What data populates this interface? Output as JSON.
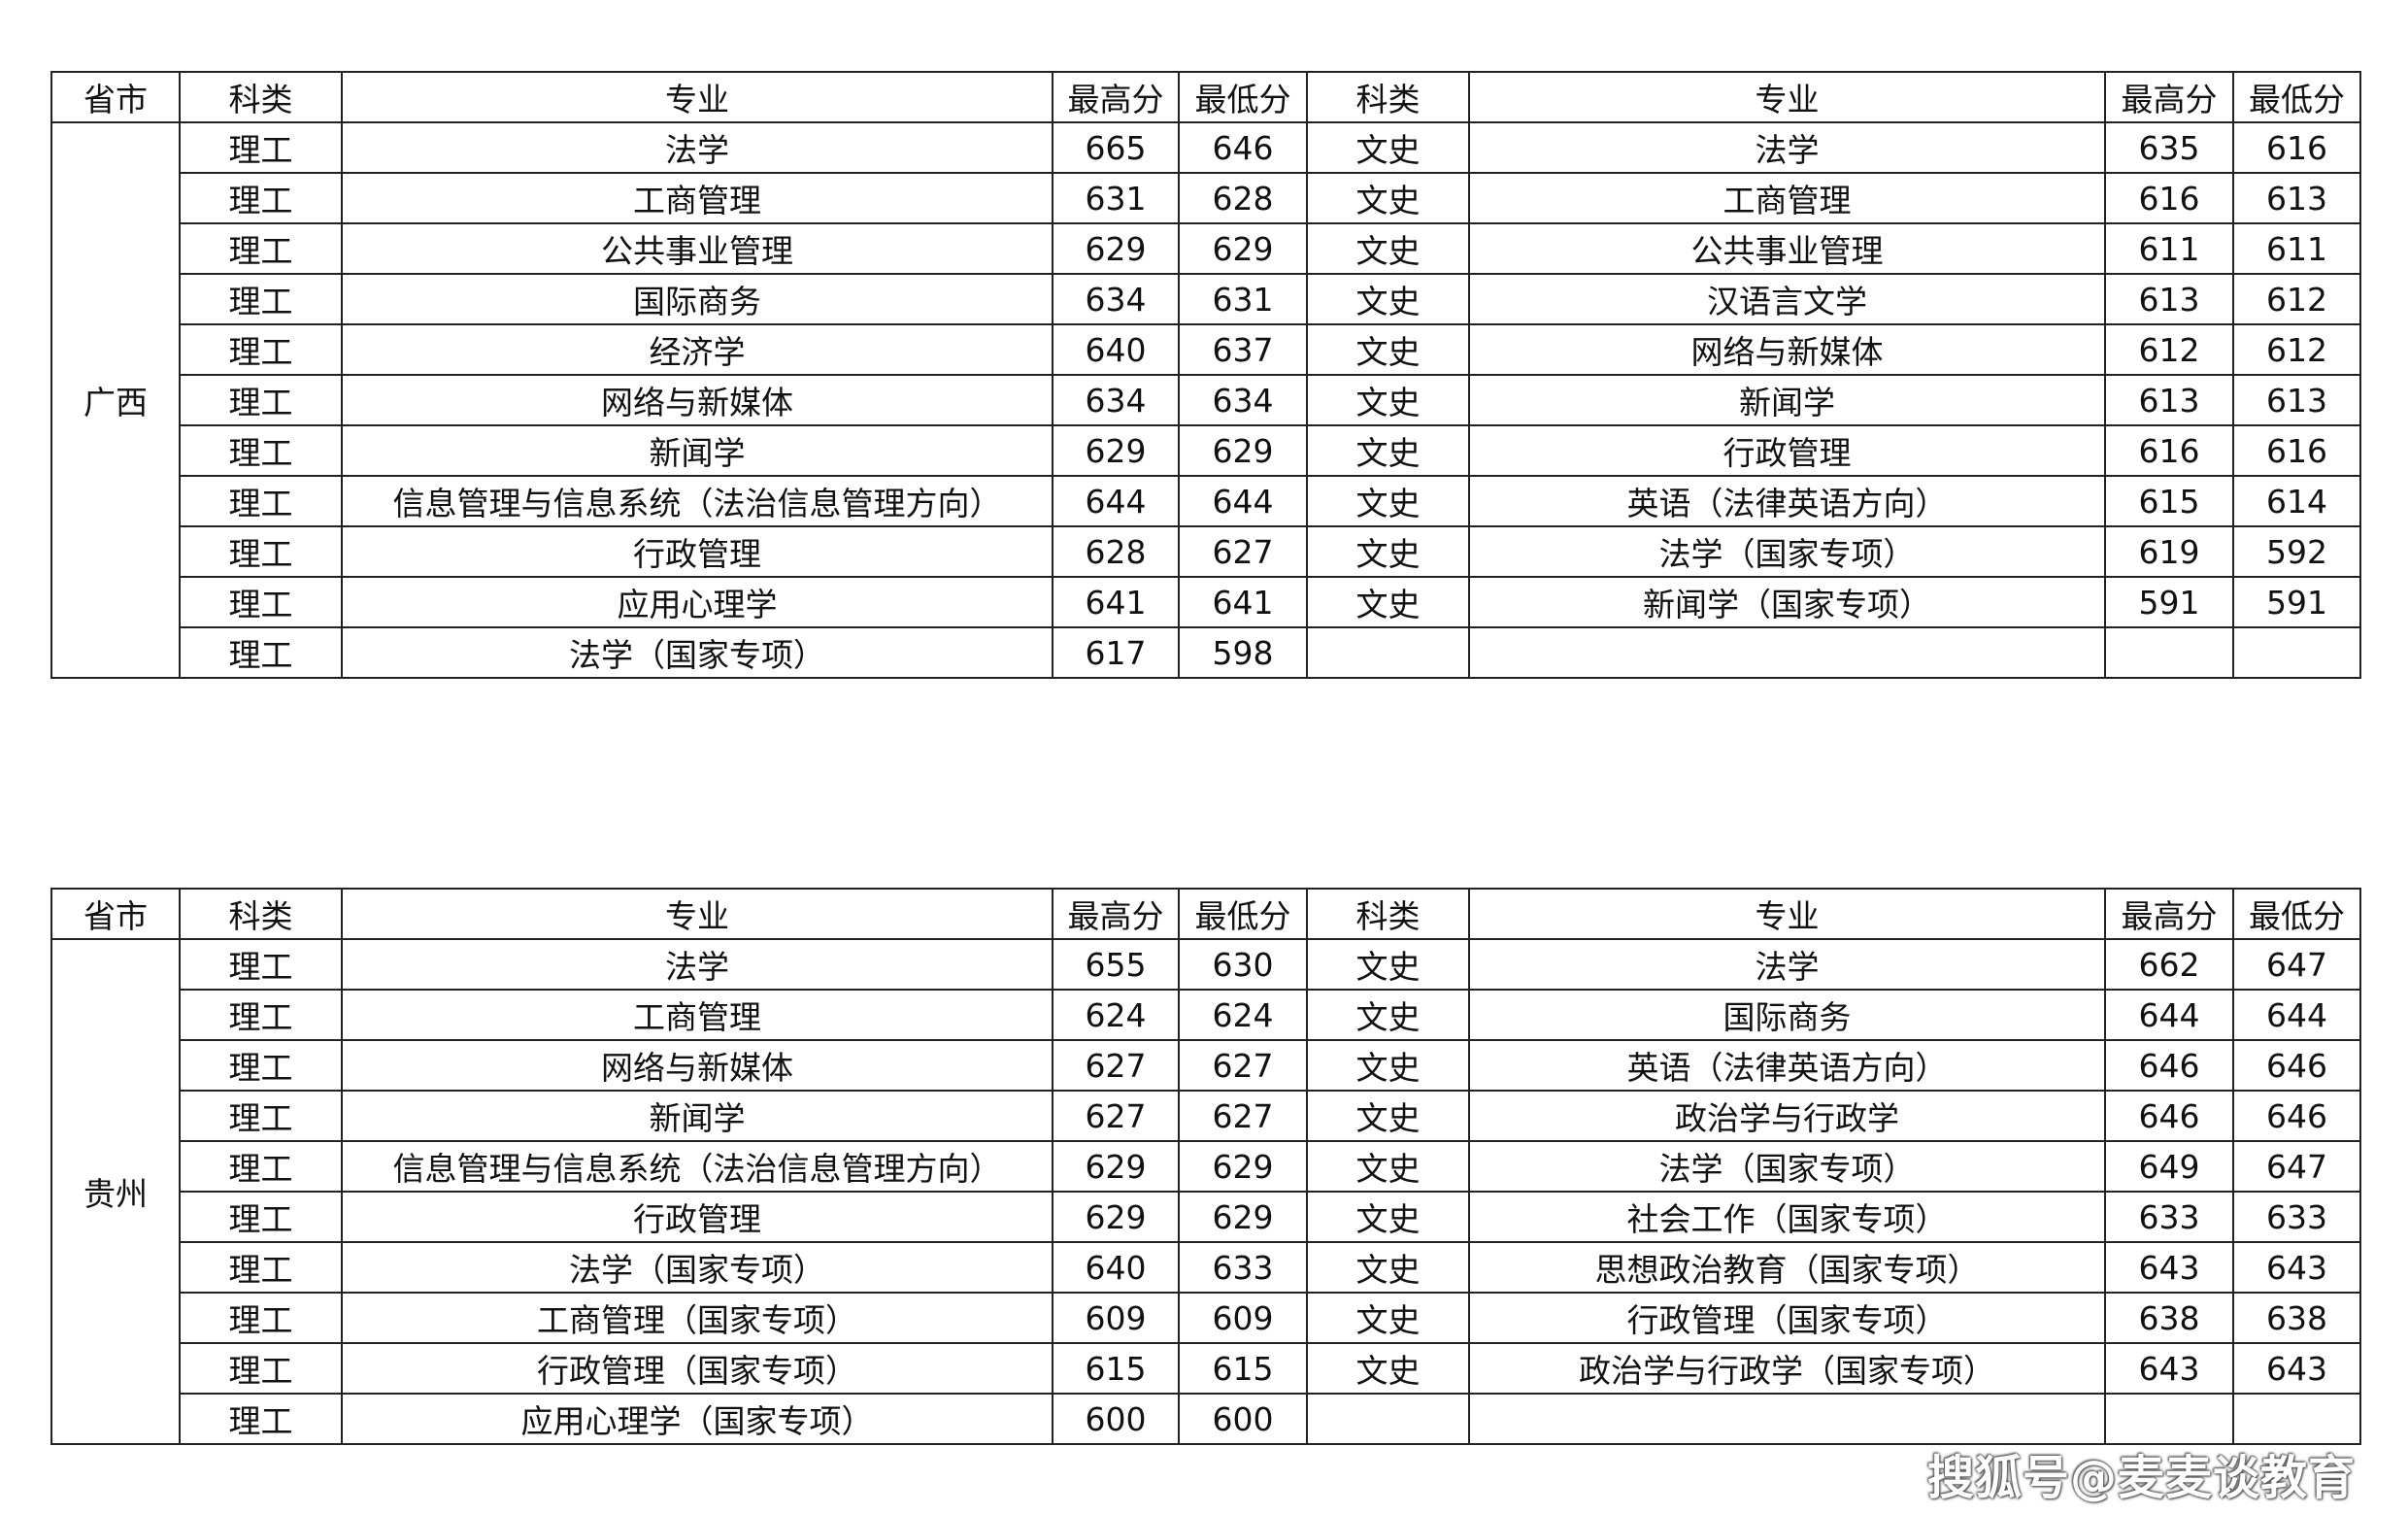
{
  "headers": {
    "province": "省市",
    "category": "科类",
    "major": "专业",
    "max": "最高分",
    "min": "最低分"
  },
  "tables": [
    {
      "province": "广西",
      "rows": [
        [
          "理工",
          "法学",
          "665",
          "646",
          "文史",
          "法学",
          "635",
          "616"
        ],
        [
          "理工",
          "工商管理",
          "631",
          "628",
          "文史",
          "工商管理",
          "616",
          "613"
        ],
        [
          "理工",
          "公共事业管理",
          "629",
          "629",
          "文史",
          "公共事业管理",
          "611",
          "611"
        ],
        [
          "理工",
          "国际商务",
          "634",
          "631",
          "文史",
          "汉语言文学",
          "613",
          "612"
        ],
        [
          "理工",
          "经济学",
          "640",
          "637",
          "文史",
          "网络与新媒体",
          "612",
          "612"
        ],
        [
          "理工",
          "网络与新媒体",
          "634",
          "634",
          "文史",
          "新闻学",
          "613",
          "613"
        ],
        [
          "理工",
          "新闻学",
          "629",
          "629",
          "文史",
          "行政管理",
          "616",
          "616"
        ],
        [
          "理工",
          "信息管理与信息系统（法治信息管理方向）",
          "644",
          "644",
          "文史",
          "英语（法律英语方向）",
          "615",
          "614"
        ],
        [
          "理工",
          "行政管理",
          "628",
          "627",
          "文史",
          "法学（国家专项）",
          "619",
          "592"
        ],
        [
          "理工",
          "应用心理学",
          "641",
          "641",
          "文史",
          "新闻学（国家专项）",
          "591",
          "591"
        ],
        [
          "理工",
          "法学（国家专项）",
          "617",
          "598",
          "",
          "",
          "",
          ""
        ]
      ]
    },
    {
      "province": "贵州",
      "rows": [
        [
          "理工",
          "法学",
          "655",
          "630",
          "文史",
          "法学",
          "662",
          "647"
        ],
        [
          "理工",
          "工商管理",
          "624",
          "624",
          "文史",
          "国际商务",
          "644",
          "644"
        ],
        [
          "理工",
          "网络与新媒体",
          "627",
          "627",
          "文史",
          "英语（法律英语方向）",
          "646",
          "646"
        ],
        [
          "理工",
          "新闻学",
          "627",
          "627",
          "文史",
          "政治学与行政学",
          "646",
          "646"
        ],
        [
          "理工",
          "信息管理与信息系统（法治信息管理方向）",
          "629",
          "629",
          "文史",
          "法学（国家专项）",
          "649",
          "647"
        ],
        [
          "理工",
          "行政管理",
          "629",
          "629",
          "文史",
          "社会工作（国家专项）",
          "633",
          "633"
        ],
        [
          "理工",
          "法学（国家专项）",
          "640",
          "633",
          "文史",
          "思想政治教育（国家专项）",
          "643",
          "643"
        ],
        [
          "理工",
          "工商管理（国家专项）",
          "609",
          "609",
          "文史",
          "行政管理（国家专项）",
          "638",
          "638"
        ],
        [
          "理工",
          "行政管理（国家专项）",
          "615",
          "615",
          "文史",
          "政治学与行政学（国家专项）",
          "643",
          "643"
        ],
        [
          "理工",
          "应用心理学（国家专项）",
          "600",
          "600",
          "",
          "",
          "",
          ""
        ]
      ]
    }
  ],
  "watermark": "搜狐号@麦麦谈教育"
}
